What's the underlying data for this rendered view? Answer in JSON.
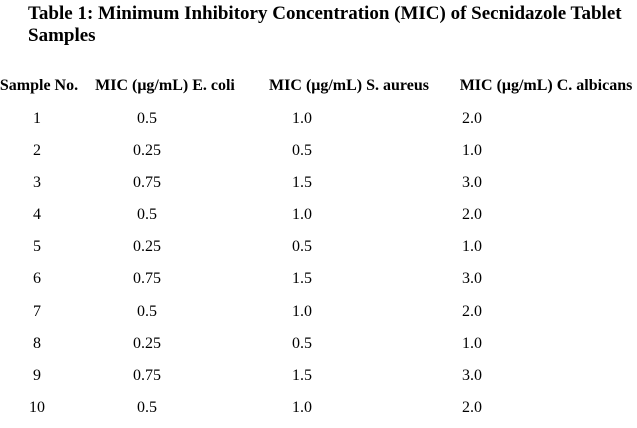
{
  "document": {
    "caption": "Table 1: Minimum Inhibitory Concentration (MIC) of Secnidazole Tablet Samples"
  },
  "table": {
    "headers": {
      "sample_no": "Sample No.",
      "e_coli": "MIC (μg/mL) E. coli",
      "s_aureus": "MIC (μg/mL) S. aureus",
      "c_albicans": "MIC (μg/mL) C. albicans"
    },
    "rows": [
      {
        "sample_no": "1",
        "e_coli": "0.5",
        "s_aureus": "1.0",
        "c_albicans": "2.0"
      },
      {
        "sample_no": "2",
        "e_coli": "0.25",
        "s_aureus": "0.5",
        "c_albicans": "1.0"
      },
      {
        "sample_no": "3",
        "e_coli": "0.75",
        "s_aureus": "1.5",
        "c_albicans": "3.0"
      },
      {
        "sample_no": "4",
        "e_coli": "0.5",
        "s_aureus": "1.0",
        "c_albicans": "2.0"
      },
      {
        "sample_no": "5",
        "e_coli": "0.25",
        "s_aureus": "0.5",
        "c_albicans": "1.0"
      },
      {
        "sample_no": "6",
        "e_coli": "0.75",
        "s_aureus": "1.5",
        "c_albicans": "3.0"
      },
      {
        "sample_no": "7",
        "e_coli": "0.5",
        "s_aureus": "1.0",
        "c_albicans": "2.0"
      },
      {
        "sample_no": "8",
        "e_coli": "0.25",
        "s_aureus": "0.5",
        "c_albicans": "1.0"
      },
      {
        "sample_no": "9",
        "e_coli": "0.75",
        "s_aureus": "1.5",
        "c_albicans": "3.0"
      },
      {
        "sample_no": "10",
        "e_coli": "0.5",
        "s_aureus": "1.0",
        "c_albicans": "2.0"
      }
    ]
  }
}
